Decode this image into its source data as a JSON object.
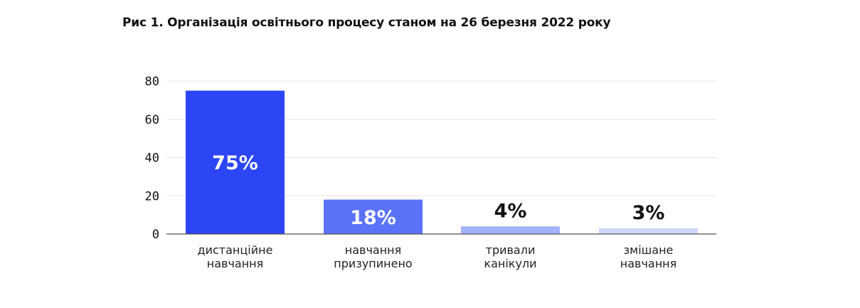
{
  "chart_data": {
    "type": "bar",
    "title": "Рис 1. Організація освітнього процесу станом на 26 березня 2022 року",
    "xlabel": "",
    "ylabel": "",
    "ylim": [
      0,
      80
    ],
    "yticks": [
      "0",
      "20",
      "40",
      "60",
      "80"
    ],
    "grid": true,
    "categories": [
      [
        "дистанційне",
        "навчання"
      ],
      [
        "навчання",
        "призупинено"
      ],
      [
        "тривали",
        "канікули"
      ],
      [
        "змішане",
        "навчання"
      ]
    ],
    "values": [
      75,
      18,
      4,
      3
    ],
    "value_labels": [
      "75%",
      "18%",
      "4%",
      "3%"
    ],
    "colors": [
      "#2c45f5",
      "#5a73f8",
      "#a3b2fb",
      "#cdd5fc"
    ],
    "value_label_colors": [
      "#ffffff",
      "#ffffff",
      "#111111",
      "#111111"
    ]
  }
}
